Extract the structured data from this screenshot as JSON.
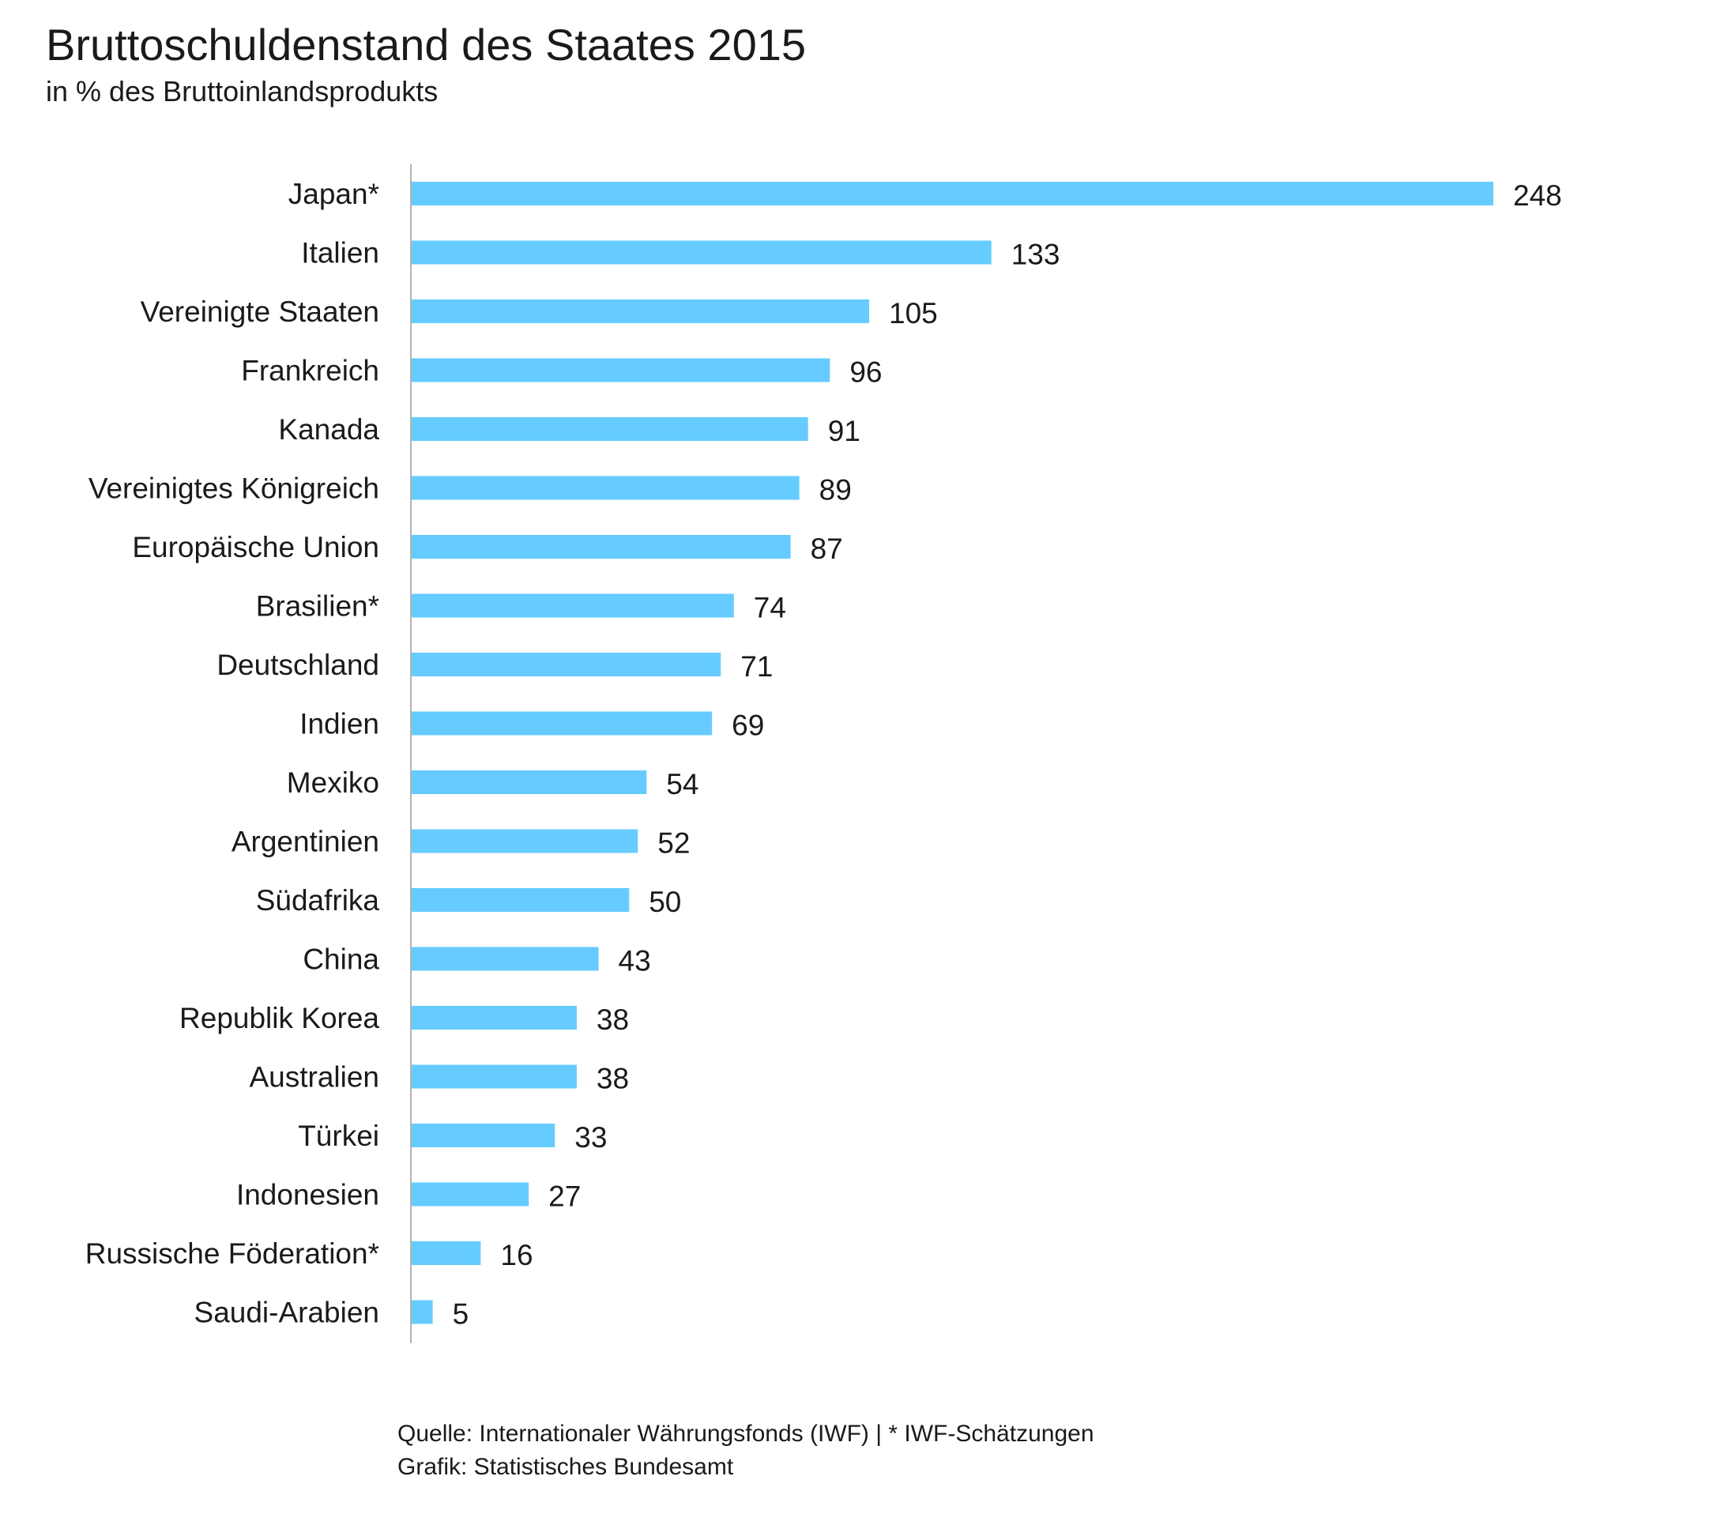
{
  "chart_data": {
    "type": "bar",
    "orientation": "horizontal",
    "title": "Bruttoschuldenstand des Staates 2015",
    "subtitle": "in % des Bruttoinlandsprodukts",
    "xlabel": "",
    "ylabel": "",
    "xlim": [
      0,
      248
    ],
    "grid": false,
    "legend": "none",
    "categories": [
      "Japan*",
      "Italien",
      "Vereinigte Staaten",
      "Frankreich",
      "Kanada",
      "Vereinigtes Königreich",
      "Europäische Union",
      "Brasilien*",
      "Deutschland",
      "Indien",
      "Mexiko",
      "Argentinien",
      "Südafrika",
      "China",
      "Republik Korea",
      "Australien",
      "Türkei",
      "Indonesien",
      "Russische Föderation*",
      "Saudi-Arabien"
    ],
    "values": [
      248,
      133,
      105,
      96,
      91,
      89,
      87,
      74,
      71,
      69,
      54,
      52,
      50,
      43,
      38,
      38,
      33,
      27,
      16,
      5
    ],
    "bar_color": "#66ccff",
    "axis_color": "#b3b3b3"
  },
  "footer": {
    "source_line": "Quelle: Internationaler Währungsfonds (IWF) | * IWF-Schätzungen",
    "credit_line": "Grafik: Statistisches Bundesamt"
  }
}
